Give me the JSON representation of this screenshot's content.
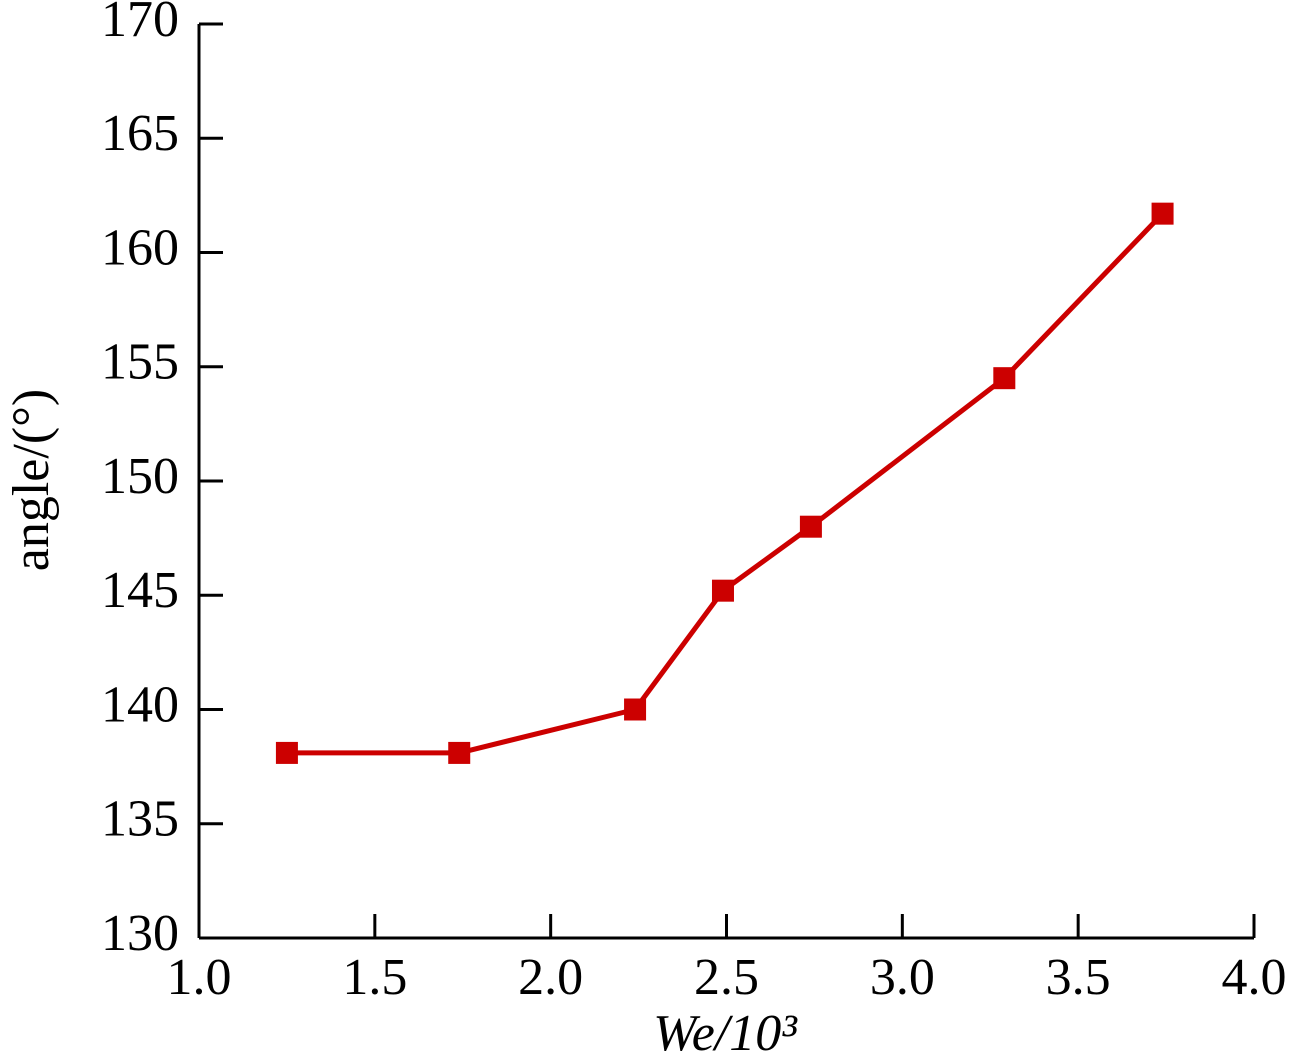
{
  "chart_data": {
    "type": "line",
    "x_label": "We/10³",
    "y_label": "angle/(°)",
    "series": [
      {
        "color": "#cc0000",
        "x": [
          1.25,
          1.74,
          2.24,
          2.49,
          2.74,
          3.29,
          3.74
        ],
        "values": [
          138.1,
          138.1,
          140.0,
          145.2,
          148.0,
          154.5,
          161.7
        ]
      }
    ],
    "xlim": [
      1.0,
      4.0
    ],
    "xticks": [
      {
        "value": 1,
        "label": "1.0"
      },
      {
        "value": 1.5,
        "label": "1.5"
      },
      {
        "value": 2,
        "label": "2.0"
      },
      {
        "value": 2.5,
        "label": "2.5"
      },
      {
        "value": 3,
        "label": "3.0"
      },
      {
        "value": 3.5,
        "label": "3.5"
      },
      {
        "value": 4,
        "label": "4.0"
      }
    ],
    "ylim": [
      130,
      170
    ],
    "yticks": [
      130,
      135,
      140,
      145,
      150,
      155,
      160,
      165,
      170
    ],
    "grid": false
  }
}
